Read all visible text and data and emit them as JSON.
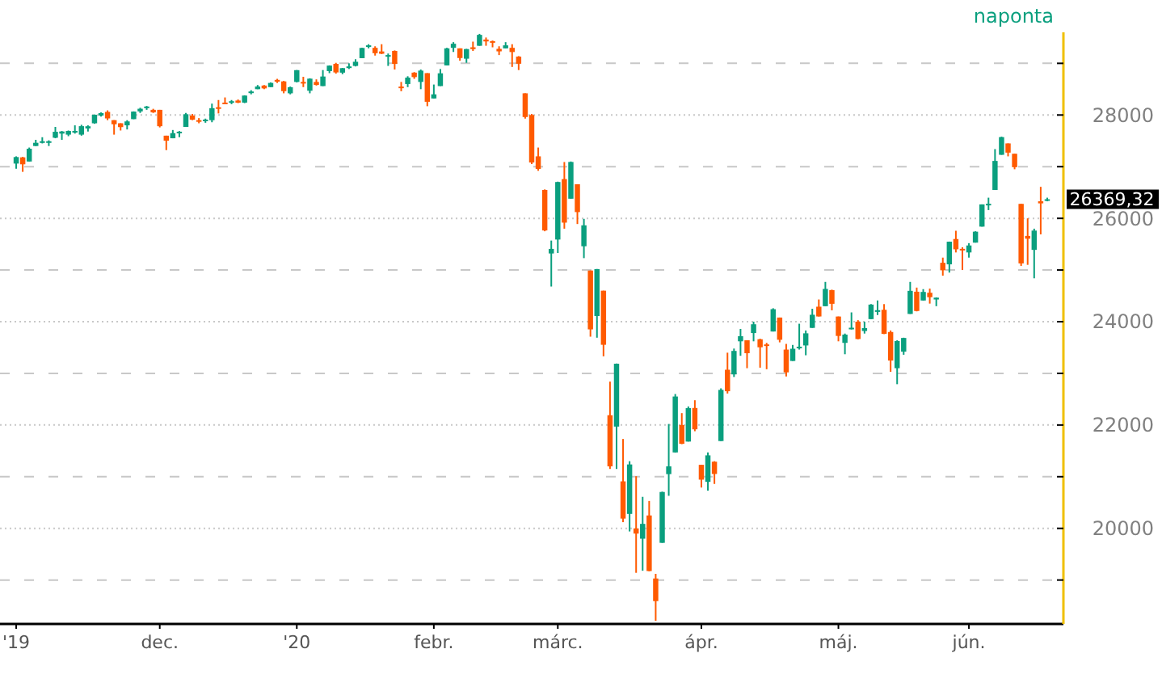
{
  "chart_data": {
    "type": "candlestick",
    "subtitle": "naponta",
    "annotations": [
      "26369,32"
    ],
    "categories": [
      "'19",
      null,
      null,
      null,
      null,
      null,
      null,
      null,
      null,
      null,
      null,
      null,
      null,
      null,
      null,
      null,
      null,
      null,
      null,
      null,
      null,
      null,
      "dec.",
      null,
      null,
      null,
      null,
      null,
      null,
      null,
      null,
      null,
      null,
      null,
      null,
      null,
      null,
      null,
      null,
      null,
      null,
      null,
      null,
      "'20",
      null,
      null,
      null,
      null,
      null,
      null,
      null,
      null,
      null,
      null,
      null,
      null,
      null,
      null,
      null,
      null,
      null,
      null,
      null,
      null,
      "febr.",
      null,
      null,
      null,
      null,
      null,
      null,
      null,
      null,
      null,
      null,
      null,
      null,
      null,
      null,
      null,
      null,
      null,
      null,
      "márc.",
      null,
      null,
      null,
      null,
      null,
      null,
      null,
      null,
      null,
      null,
      null,
      null,
      null,
      null,
      null,
      null,
      null,
      null,
      null,
      null,
      null,
      "ápr.",
      null,
      null,
      null,
      null,
      null,
      null,
      null,
      null,
      null,
      null,
      null,
      null,
      null,
      null,
      null,
      null,
      null,
      null,
      null,
      null,
      "máj.",
      null,
      null,
      null,
      null,
      null,
      null,
      null,
      null,
      null,
      null,
      null,
      null,
      null,
      null,
      null,
      null,
      null,
      null,
      null,
      "jún.",
      null,
      null,
      null,
      null,
      null,
      null,
      null,
      null,
      null,
      null,
      null,
      null
    ],
    "ohlc": [
      [
        27060,
        27200,
        26960,
        27186
      ],
      [
        27180,
        27190,
        26900,
        27046
      ],
      [
        27100,
        27370,
        27100,
        27347
      ],
      [
        27400,
        27520,
        27400,
        27462
      ],
      [
        27480,
        27570,
        27450,
        27492
      ],
      [
        27480,
        27510,
        27400,
        27492
      ],
      [
        27560,
        27770,
        27550,
        27675
      ],
      [
        27640,
        27690,
        27520,
        27681
      ],
      [
        27620,
        27700,
        27590,
        27691
      ],
      [
        27690,
        27800,
        27640,
        27691
      ],
      [
        27620,
        27810,
        27600,
        27784
      ],
      [
        27740,
        27800,
        27680,
        27782
      ],
      [
        27840,
        28010,
        27830,
        28005
      ],
      [
        27990,
        28050,
        27970,
        28036
      ],
      [
        28060,
        28090,
        27900,
        27934
      ],
      [
        27900,
        27900,
        27620,
        27821
      ],
      [
        27840,
        27840,
        27700,
        27766
      ],
      [
        27800,
        27900,
        27720,
        27876
      ],
      [
        27920,
        28070,
        27920,
        28066
      ],
      [
        28070,
        28140,
        28040,
        28121
      ],
      [
        28140,
        28175,
        28100,
        28164
      ],
      [
        28100,
        28120,
        28040,
        28051
      ],
      [
        28100,
        28100,
        27760,
        27783
      ],
      [
        27600,
        27600,
        27320,
        27503
      ],
      [
        27550,
        27710,
        27550,
        27649
      ],
      [
        27660,
        27690,
        27570,
        27677
      ],
      [
        27770,
        28040,
        27770,
        28015
      ],
      [
        27990,
        28020,
        27900,
        27909
      ],
      [
        27900,
        27940,
        27840,
        27881
      ],
      [
        27880,
        27930,
        27850,
        27911
      ],
      [
        27900,
        28220,
        27860,
        28132
      ],
      [
        28150,
        28290,
        28030,
        28135
      ],
      [
        28240,
        28340,
        28220,
        28235
      ],
      [
        28260,
        28290,
        28210,
        28267
      ],
      [
        28280,
        28300,
        28230,
        28239
      ],
      [
        28240,
        28380,
        28230,
        28376
      ],
      [
        28430,
        28480,
        28400,
        28455
      ],
      [
        28500,
        28580,
        28500,
        28551
      ],
      [
        28570,
        28580,
        28500,
        28515
      ],
      [
        28540,
        28630,
        28540,
        28621
      ],
      [
        28680,
        28700,
        28620,
        28645
      ],
      [
        28650,
        28660,
        28420,
        28462
      ],
      [
        28420,
        28550,
        28400,
        28538
      ],
      [
        28640,
        28870,
        28630,
        28868
      ],
      [
        28640,
        28740,
        28540,
        28634
      ],
      [
        28470,
        28710,
        28420,
        28703
      ],
      [
        28640,
        28690,
        28570,
        28583
      ],
      [
        28560,
        28870,
        28560,
        28745
      ],
      [
        28850,
        28960,
        28810,
        28956
      ],
      [
        28990,
        29010,
        28800,
        28824
      ],
      [
        28820,
        28910,
        28790,
        28907
      ],
      [
        28910,
        29000,
        28890,
        28940
      ],
      [
        28950,
        29080,
        28940,
        29030
      ],
      [
        29100,
        29300,
        29100,
        29298
      ],
      [
        29320,
        29370,
        29290,
        29348
      ],
      [
        29300,
        29330,
        29150,
        29196
      ],
      [
        29230,
        29370,
        29180,
        29186
      ],
      [
        29140,
        29190,
        28950,
        29160
      ],
      [
        29240,
        29250,
        28880,
        28990
      ],
      [
        28550,
        28640,
        28460,
        28535
      ],
      [
        28600,
        28750,
        28540,
        28723
      ],
      [
        28820,
        28830,
        28700,
        28734
      ],
      [
        28640,
        28880,
        28500,
        28859
      ],
      [
        28810,
        28810,
        28170,
        28256
      ],
      [
        28320,
        28590,
        28320,
        28400
      ],
      [
        28560,
        28890,
        28560,
        28807
      ],
      [
        28960,
        29300,
        28960,
        29290
      ],
      [
        29300,
        29410,
        29220,
        29379
      ],
      [
        29290,
        29290,
        29050,
        29103
      ],
      [
        29090,
        29280,
        29010,
        29276
      ],
      [
        29310,
        29420,
        29240,
        29276
      ],
      [
        29340,
        29570,
        29340,
        29551
      ],
      [
        29460,
        29500,
        29340,
        29424
      ],
      [
        29430,
        29440,
        29310,
        29398
      ],
      [
        29280,
        29330,
        29160,
        29232
      ],
      [
        29290,
        29410,
        29290,
        29348
      ],
      [
        29300,
        29370,
        28930,
        29219
      ],
      [
        29130,
        29140,
        28870,
        28992
      ],
      [
        28420,
        28420,
        27930,
        27961
      ],
      [
        28000,
        28020,
        27050,
        27081
      ],
      [
        27200,
        27370,
        26920,
        26957
      ],
      [
        26550,
        26560,
        25750,
        25766
      ],
      [
        25320,
        25570,
        24680,
        25409
      ],
      [
        25590,
        26710,
        25330,
        26703
      ],
      [
        26760,
        27090,
        25800,
        25917
      ],
      [
        26380,
        27100,
        26380,
        27091
      ],
      [
        26660,
        26660,
        25890,
        26121
      ],
      [
        25460,
        25990,
        25230,
        25865
      ],
      [
        24990,
        24990,
        23710,
        23851
      ],
      [
        24110,
        25020,
        23690,
        25018
      ],
      [
        24600,
        24600,
        23330,
        23553
      ],
      [
        22190,
        22840,
        21150,
        21200
      ],
      [
        21970,
        23190,
        21150,
        23186
      ],
      [
        20910,
        21730,
        20120,
        20189
      ],
      [
        20280,
        21300,
        19940,
        21237
      ],
      [
        20000,
        21010,
        19140,
        19899
      ],
      [
        19800,
        20610,
        19180,
        20087
      ],
      [
        20250,
        20530,
        19170,
        19174
      ],
      [
        19030,
        19120,
        18210,
        18592
      ],
      [
        19720,
        20710,
        19720,
        20704
      ],
      [
        21050,
        22020,
        20630,
        21200
      ],
      [
        21470,
        22600,
        21470,
        22552
      ],
      [
        22000,
        22230,
        21630,
        21637
      ],
      [
        21680,
        22360,
        21680,
        22327
      ],
      [
        22330,
        22480,
        21880,
        21917
      ],
      [
        21230,
        21230,
        20790,
        20943
      ],
      [
        20900,
        21470,
        20730,
        21413
      ],
      [
        21290,
        21300,
        20860,
        21053
      ],
      [
        21690,
        22710,
        21690,
        22680
      ],
      [
        23070,
        23400,
        22610,
        22654
      ],
      [
        22980,
        23480,
        22930,
        23434
      ],
      [
        23620,
        23860,
        23340,
        23719
      ],
      [
        23640,
        23640,
        23100,
        23390
      ],
      [
        23780,
        24000,
        23620,
        23950
      ],
      [
        23660,
        23670,
        23110,
        23505
      ],
      [
        23560,
        23590,
        23080,
        23538
      ],
      [
        23810,
        24260,
        23810,
        24242
      ],
      [
        24080,
        24080,
        23600,
        23650
      ],
      [
        23460,
        23570,
        22940,
        23019
      ],
      [
        23240,
        23550,
        23240,
        23476
      ],
      [
        23510,
        23960,
        23460,
        23516
      ],
      [
        23540,
        23830,
        23350,
        23775
      ],
      [
        23880,
        24250,
        23880,
        24134
      ],
      [
        24290,
        24430,
        24100,
        24101
      ],
      [
        24300,
        24770,
        24300,
        24634
      ],
      [
        24610,
        24620,
        24220,
        24346
      ],
      [
        24100,
        24100,
        23620,
        23724
      ],
      [
        23590,
        23770,
        23370,
        23750
      ],
      [
        23880,
        24180,
        23850,
        23883
      ],
      [
        24000,
        24030,
        23660,
        23665
      ],
      [
        23820,
        24000,
        23770,
        23876
      ],
      [
        24050,
        24340,
        24050,
        24331
      ],
      [
        24190,
        24410,
        24130,
        24222
      ],
      [
        24230,
        24340,
        23760,
        23764
      ],
      [
        23800,
        23830,
        23030,
        23248
      ],
      [
        23100,
        23640,
        22790,
        23625
      ],
      [
        23420,
        23690,
        23360,
        23685
      ],
      [
        24150,
        24770,
        24150,
        24597
      ],
      [
        24580,
        24660,
        24200,
        24207
      ],
      [
        24410,
        24630,
        24410,
        24576
      ],
      [
        24560,
        24640,
        24350,
        24474
      ],
      [
        24430,
        24470,
        24300,
        24465
      ],
      [
        25140,
        25240,
        24890,
        24995
      ],
      [
        25110,
        25550,
        24950,
        25548
      ],
      [
        25600,
        25760,
        25340,
        25401
      ],
      [
        25410,
        25440,
        25000,
        25383
      ],
      [
        25340,
        25520,
        25240,
        25475
      ],
      [
        25530,
        25750,
        25530,
        25742
      ],
      [
        25840,
        26270,
        25840,
        26270
      ],
      [
        26270,
        26400,
        26160,
        26282
      ],
      [
        26550,
        27340,
        26550,
        27111
      ],
      [
        27230,
        27580,
        27230,
        27572
      ],
      [
        27450,
        27450,
        27200,
        27272
      ],
      [
        27250,
        27250,
        26950,
        26990
      ],
      [
        26280,
        26280,
        25080,
        25128
      ],
      [
        25660,
        26000,
        25100,
        25606
      ],
      [
        25390,
        25800,
        24840,
        25763
      ],
      [
        26330,
        26610,
        25690,
        26290
      ],
      [
        26360,
        26400,
        26330,
        26369.32
      ]
    ],
    "colors": [
      "#0a9f7e",
      "#ff5a00",
      "#0a9f7e",
      "#0a9f7e",
      "#0a9f7e",
      "#0a9f7e",
      "#0a9f7e",
      "#0a9f7e",
      "#0a9f7e",
      "#0a9f7e",
      "#0a9f7e",
      "#0a9f7e",
      "#0a9f7e",
      "#0a9f7e",
      "#ff5a00",
      "#ff5a00",
      "#ff5a00",
      "#0a9f7e",
      "#0a9f7e",
      "#0a9f7e",
      "#0a9f7e",
      "#ff5a00",
      "#ff5a00",
      "#ff5a00",
      "#0a9f7e",
      "#0a9f7e",
      "#0a9f7e",
      "#ff5a00",
      "#ff5a00",
      "#0a9f7e",
      "#0a9f7e",
      "#ff5a00",
      "#ff5a00",
      "#0a9f7e",
      "#ff5a00",
      "#0a9f7e",
      "#0a9f7e",
      "#0a9f7e",
      "#ff5a00",
      "#0a9f7e",
      "#ff5a00",
      "#ff5a00",
      "#0a9f7e",
      "#0a9f7e",
      "#ff5a00",
      "#0a9f7e",
      "#ff5a00",
      "#0a9f7e",
      "#0a9f7e",
      "#ff5a00",
      "#0a9f7e",
      "#0a9f7e",
      "#0a9f7e",
      "#0a9f7e",
      "#0a9f7e",
      "#ff5a00",
      "#ff5a00",
      "#0a9f7e",
      "#ff5a00",
      "#ff5a00",
      "#0a9f7e",
      "#ff5a00",
      "#0a9f7e",
      "#ff5a00",
      "#0a9f7e",
      "#0a9f7e",
      "#0a9f7e",
      "#0a9f7e",
      "#ff5a00",
      "#0a9f7e",
      "#ff5a00",
      "#0a9f7e",
      "#ff5a00",
      "#ff5a00",
      "#ff5a00",
      "#0a9f7e",
      "#ff5a00",
      "#ff5a00",
      "#ff5a00",
      "#ff5a00",
      "#ff5a00",
      "#ff5a00",
      "#0a9f7e",
      "#0a9f7e",
      "#ff5a00",
      "#0a9f7e",
      "#ff5a00",
      "#0a9f7e",
      "#ff5a00",
      "#0a9f7e",
      "#ff5a00",
      "#ff5a00",
      "#0a9f7e",
      "#ff5a00",
      "#0a9f7e",
      "#ff5a00",
      "#0a9f7e",
      "#ff5a00",
      "#ff5a00",
      "#0a9f7e",
      "#0a9f7e",
      "#0a9f7e",
      "#ff5a00",
      "#0a9f7e",
      "#ff5a00",
      "#ff5a00",
      "#0a9f7e",
      "#ff5a00",
      "#0a9f7e",
      "#ff5a00",
      "#0a9f7e",
      "#0a9f7e",
      "#ff5a00",
      "#0a9f7e",
      "#ff5a00",
      "#ff5a00",
      "#0a9f7e",
      "#ff5a00",
      "#ff5a00",
      "#0a9f7e",
      "#0a9f7e",
      "#0a9f7e",
      "#0a9f7e",
      "#ff5a00",
      "#0a9f7e",
      "#ff5a00",
      "#ff5a00",
      "#0a9f7e",
      "#0a9f7e",
      "#ff5a00",
      "#0a9f7e",
      "#0a9f7e",
      "#0a9f7e",
      "#ff5a00",
      "#ff5a00",
      "#0a9f7e",
      "#0a9f7e",
      "#0a9f7e",
      "#ff5a00",
      "#0a9f7e",
      "#ff5a00",
      "#0a9f7e",
      "#ff5a00",
      "#0a9f7e",
      "#ff5a00",
      "#ff5a00",
      "#0a9f7e",
      "#0a9f7e",
      "#0a9f7e",
      "#0a9f7e",
      "#0a9f7e",
      "#0a9f7e",
      "#ff5a00",
      "#ff5a00",
      "#ff5a00",
      "#ff5a00",
      "#0a9f7e",
      "#ff5a00",
      "#0a9f7e"
    ],
    "ylim": [
      18150,
      29600
    ],
    "yticks": [
      {
        "value": 19000,
        "label": null
      },
      20000,
      {
        "value": 21000,
        "label": null
      },
      22000,
      {
        "value": 23000,
        "label": null
      },
      24000,
      {
        "value": 25000,
        "label": null
      },
      26000,
      {
        "value": 27000,
        "label": null
      },
      28000,
      {
        "value": 29000,
        "label": null
      }
    ],
    "grid": true
  }
}
